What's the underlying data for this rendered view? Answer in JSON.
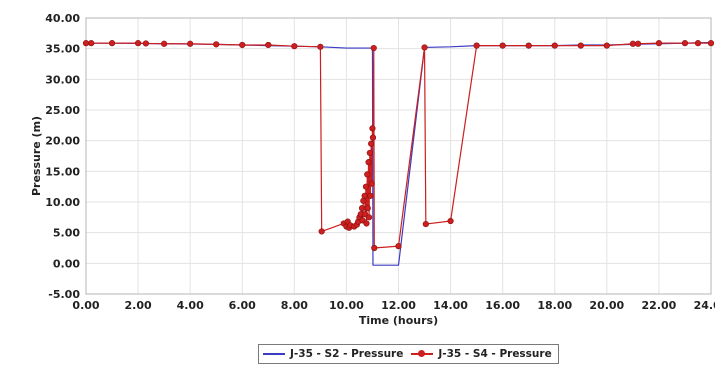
{
  "chart_data": {
    "type": "line",
    "title": "",
    "xlabel": "Time (hours)",
    "ylabel": "Pressure (m)",
    "xlim": [
      0,
      24
    ],
    "ylim": [
      -5,
      40
    ],
    "x_ticks": [
      "0.00",
      "2.00",
      "4.00",
      "6.00",
      "8.00",
      "10.00",
      "12.00",
      "14.00",
      "16.00",
      "18.00",
      "20.00",
      "22.00",
      "24.00"
    ],
    "y_ticks": [
      "-5.00",
      "0.00",
      "5.00",
      "10.00",
      "15.00",
      "20.00",
      "25.00",
      "30.00",
      "35.00",
      "40.00"
    ],
    "grid": true,
    "legend_position": "bottom",
    "series": [
      {
        "name": "J-35 - S2 - Pressure",
        "color": "#3b3bc4",
        "marker": "none",
        "points": [
          [
            0,
            35.9
          ],
          [
            1,
            35.9
          ],
          [
            2,
            35.85
          ],
          [
            3,
            35.8
          ],
          [
            4,
            35.75
          ],
          [
            5,
            35.7
          ],
          [
            6,
            35.6
          ],
          [
            7,
            35.5
          ],
          [
            8,
            35.4
          ],
          [
            9,
            35.3
          ],
          [
            10,
            35.1
          ],
          [
            11,
            35.1
          ],
          [
            11.02,
            -0.3
          ],
          [
            12,
            -0.3
          ],
          [
            13,
            35.2
          ],
          [
            14,
            35.3
          ],
          [
            15,
            35.5
          ],
          [
            16,
            35.5
          ],
          [
            17,
            35.5
          ],
          [
            18,
            35.5
          ],
          [
            19,
            35.6
          ],
          [
            20,
            35.6
          ],
          [
            21,
            35.7
          ],
          [
            22,
            35.8
          ],
          [
            23,
            35.9
          ],
          [
            24,
            36.0
          ]
        ]
      },
      {
        "name": "J-35 - S4 - Pressure",
        "color": "#cc1f1f",
        "marker": "dot",
        "points": [
          [
            0.0,
            35.9
          ],
          [
            0.2,
            35.9
          ],
          [
            1.0,
            35.9
          ],
          [
            2.0,
            35.9
          ],
          [
            2.3,
            35.85
          ],
          [
            3.0,
            35.8
          ],
          [
            4.0,
            35.8
          ],
          [
            5.0,
            35.7
          ],
          [
            6.0,
            35.6
          ],
          [
            7.0,
            35.6
          ],
          [
            8.0,
            35.4
          ],
          [
            9.0,
            35.3
          ],
          [
            9.05,
            5.2
          ],
          [
            9.9,
            6.5
          ],
          [
            10.0,
            6.0
          ],
          [
            10.05,
            6.8
          ],
          [
            10.1,
            5.8
          ],
          [
            10.15,
            6.2
          ],
          [
            10.3,
            6.0
          ],
          [
            10.4,
            6.3
          ],
          [
            10.45,
            6.8
          ],
          [
            10.5,
            7.5
          ],
          [
            10.55,
            8.0
          ],
          [
            10.6,
            9.0
          ],
          [
            10.62,
            7.0
          ],
          [
            10.65,
            10.2
          ],
          [
            10.7,
            11.0
          ],
          [
            10.72,
            8.0
          ],
          [
            10.75,
            12.5
          ],
          [
            10.77,
            6.5
          ],
          [
            10.8,
            14.5
          ],
          [
            10.82,
            9.0
          ],
          [
            10.85,
            16.5
          ],
          [
            10.87,
            7.5
          ],
          [
            10.9,
            18.0
          ],
          [
            10.92,
            11.0
          ],
          [
            10.95,
            19.5
          ],
          [
            10.97,
            13.0
          ],
          [
            11.0,
            22.0
          ],
          [
            11.02,
            20.5
          ],
          [
            11.05,
            35.1
          ],
          [
            11.07,
            2.5
          ],
          [
            12.0,
            2.8
          ],
          [
            13.0,
            35.2
          ],
          [
            13.05,
            6.4
          ],
          [
            14.0,
            6.9
          ],
          [
            15.0,
            35.5
          ],
          [
            16.0,
            35.5
          ],
          [
            17.0,
            35.5
          ],
          [
            18.0,
            35.5
          ],
          [
            19.0,
            35.5
          ],
          [
            20.0,
            35.5
          ],
          [
            21.0,
            35.8
          ],
          [
            21.2,
            35.8
          ],
          [
            22.0,
            35.9
          ],
          [
            23.0,
            35.9
          ],
          [
            23.5,
            35.9
          ],
          [
            24.0,
            35.9
          ]
        ]
      }
    ]
  }
}
